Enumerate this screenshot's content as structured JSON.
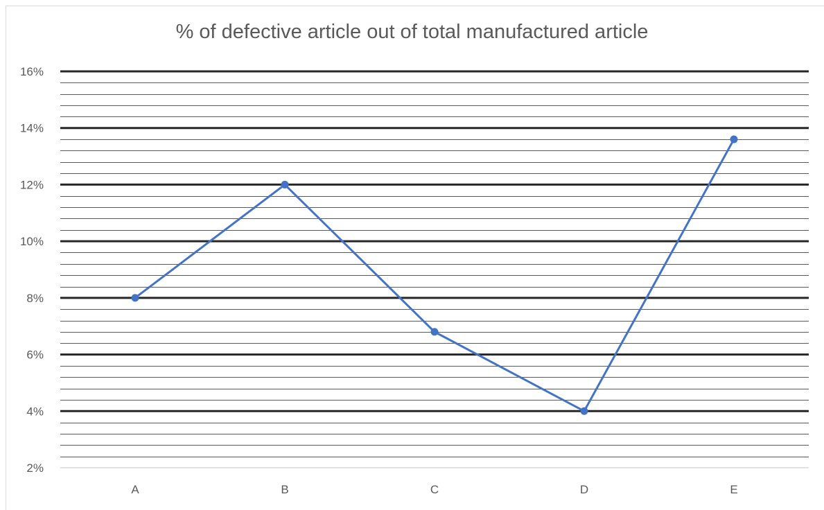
{
  "chart_data": {
    "type": "line",
    "title": "% of defective article out of total manufactured article",
    "categories": [
      "A",
      "B",
      "C",
      "D",
      "E"
    ],
    "series": [
      {
        "values": [
          0.08,
          0.12,
          0.068,
          0.04,
          0.136
        ]
      }
    ],
    "ylim": [
      0.02,
      0.16
    ],
    "y_major_ticks": [
      0.02,
      0.04,
      0.06,
      0.08,
      0.1,
      0.12,
      0.14,
      0.16
    ],
    "y_tick_labels": [
      "2%",
      "4%",
      "6%",
      "8%",
      "10%",
      "12%",
      "14%",
      "16%"
    ],
    "y_minor_step": 0.004,
    "grid": true,
    "legend": "none",
    "colors": {
      "line": "#4472c4",
      "major_grid": "#262626",
      "minor_grid": "#595959",
      "axis_baseline": "#d9d9d9",
      "text": "#595959"
    }
  }
}
